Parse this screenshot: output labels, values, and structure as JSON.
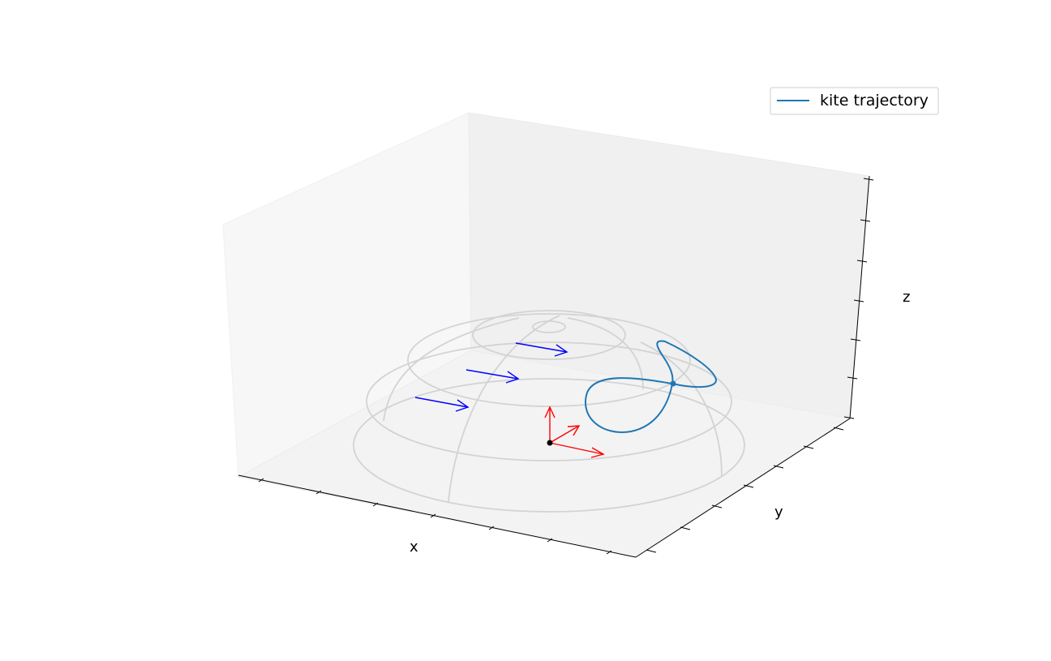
{
  "chart_data": {
    "type": "line",
    "projection": "3d",
    "xlabel": "x",
    "ylabel": "y",
    "zlabel": "z",
    "tick_labels_shown": false,
    "grid": false,
    "legend": {
      "placement": "top-right",
      "entries": [
        "kite trajectory"
      ]
    },
    "series": [
      {
        "name": "kite trajectory",
        "shape": "figure-eight path on the hemisphere surface",
        "color": "#1f77b4",
        "crossing_point_marked": true
      }
    ],
    "hemisphere_wireframe": {
      "color": "#d3d3d3",
      "latitude_circles": 5,
      "meridians": 4
    },
    "wind_arrows": {
      "count": 3,
      "color": "#0000ff",
      "direction": "+x"
    },
    "tether_origin_frame": {
      "marker_color": "#000000",
      "arrow_color": "#ff0000",
      "axes": [
        "x",
        "y",
        "z"
      ]
    }
  }
}
